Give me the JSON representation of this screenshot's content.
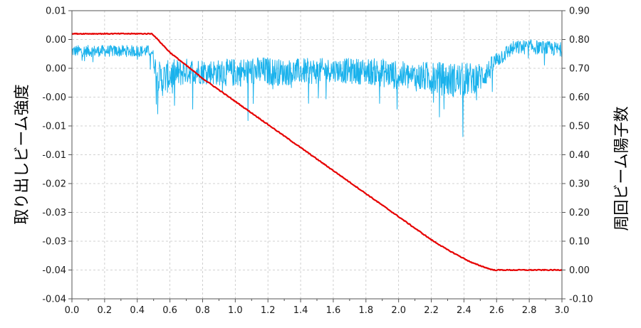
{
  "chart_data": {
    "type": "line",
    "title": "",
    "xlabel": "",
    "ylabel_left": "取り出しビーム強度",
    "ylabel_right": "周回ビーム陽子数",
    "x_ticks": [
      "0.0",
      "0.2",
      "0.4",
      "0.6",
      "0.8",
      "1.0",
      "1.2",
      "1.4",
      "1.6",
      "1.8",
      "2.0",
      "2.2",
      "2.4",
      "2.6",
      "2.8",
      "3.0"
    ],
    "y_left_ticks": [
      "0.01",
      "0.00",
      "0.00",
      "-0.00",
      "-0.01",
      "-0.01",
      "-0.02",
      "-0.03",
      "-0.03",
      "-0.04",
      "-0.04"
    ],
    "y_right_ticks": [
      "0.90",
      "0.80",
      "0.70",
      "0.60",
      "0.50",
      "0.40",
      "0.30",
      "0.20",
      "0.10",
      "0.00",
      "-0.10"
    ],
    "xlim": [
      0.0,
      3.0
    ],
    "ylim_right": [
      -0.1,
      0.9
    ],
    "grid": true,
    "series": [
      {
        "axis": "right",
        "color": "#e60000",
        "x": [
          0.0,
          0.49,
          0.5,
          0.55,
          0.6,
          0.7,
          0.8,
          0.9,
          1.0,
          1.1,
          1.2,
          1.3,
          1.4,
          1.5,
          1.6,
          1.7,
          1.8,
          1.9,
          2.0,
          2.1,
          2.2,
          2.3,
          2.4,
          2.45,
          2.5,
          2.55,
          2.58,
          2.6,
          3.0
        ],
        "values": [
          0.82,
          0.82,
          0.815,
          0.785,
          0.755,
          0.71,
          0.665,
          0.625,
          0.585,
          0.545,
          0.505,
          0.465,
          0.425,
          0.385,
          0.345,
          0.305,
          0.265,
          0.225,
          0.185,
          0.145,
          0.105,
          0.07,
          0.04,
          0.025,
          0.015,
          0.005,
          0.0,
          0.0,
          0.0
        ]
      },
      {
        "axis": "right",
        "color": "#1ab2ec",
        "x": [
          0.0,
          0.49,
          0.5,
          0.52,
          0.55,
          0.6,
          0.7,
          0.8,
          0.9,
          1.0,
          1.1,
          1.2,
          1.3,
          1.4,
          1.5,
          1.6,
          1.7,
          1.8,
          1.9,
          2.0,
          2.1,
          2.2,
          2.3,
          2.4,
          2.5,
          2.55,
          2.6,
          2.7,
          2.8,
          2.9,
          3.0
        ],
        "values": [
          0.76,
          0.76,
          0.73,
          0.68,
          0.66,
          0.675,
          0.69,
          0.69,
          0.685,
          0.685,
          0.69,
          0.69,
          0.685,
          0.69,
          0.69,
          0.695,
          0.69,
          0.69,
          0.685,
          0.675,
          0.67,
          0.67,
          0.66,
          0.66,
          0.67,
          0.69,
          0.73,
          0.77,
          0.775,
          0.77,
          0.765
        ],
        "noise": [
          0.02,
          0.02,
          0.03,
          0.05,
          0.06,
          0.055,
          0.045,
          0.045,
          0.045,
          0.05,
          0.05,
          0.05,
          0.045,
          0.045,
          0.045,
          0.04,
          0.045,
          0.045,
          0.05,
          0.05,
          0.05,
          0.055,
          0.06,
          0.06,
          0.05,
          0.04,
          0.03,
          0.025,
          0.025,
          0.025,
          0.025
        ]
      }
    ]
  }
}
